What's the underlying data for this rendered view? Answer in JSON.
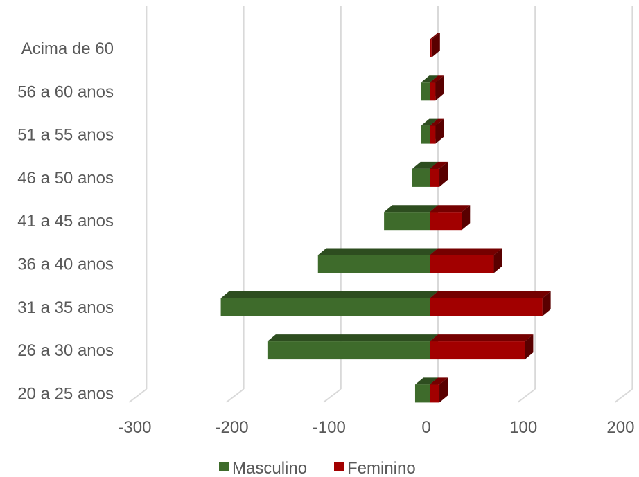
{
  "chart_data": {
    "type": "bar",
    "orientation": "horizontal",
    "stacked": true,
    "three_d": true,
    "categories": [
      "20 a 25 anos",
      "26 a 30 anos",
      "31 a 35 anos",
      "36 a 40 anos",
      "41 a 45 anos",
      "46 a 50 anos",
      "51 a 55 anos",
      "56 a 60 anos",
      "Acima de 60"
    ],
    "series": [
      {
        "name": "Masculino",
        "color": "#3e6b2b",
        "values": [
          -15,
          -167,
          -215,
          -115,
          -47,
          -18,
          -9,
          -9,
          0
        ]
      },
      {
        "name": "Feminino",
        "color": "#a20000",
        "values": [
          10,
          98,
          116,
          66,
          33,
          10,
          6,
          6,
          2
        ]
      }
    ],
    "x_ticks": [
      "-300",
      "-200",
      "-100",
      "0",
      "100",
      "200"
    ],
    "xlim": [
      -300,
      200
    ],
    "grid": true,
    "legend_position": "bottom"
  }
}
